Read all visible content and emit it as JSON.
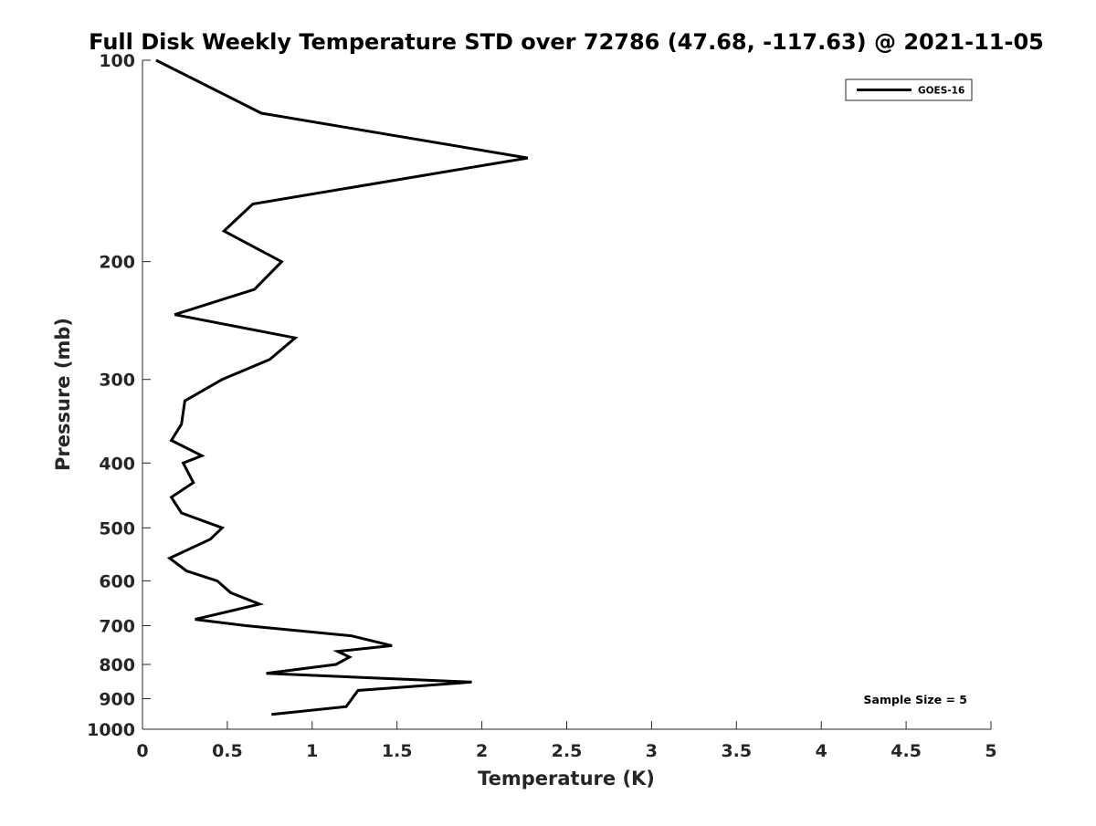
{
  "chart_data": {
    "type": "line",
    "title": "Full Disk Weekly Temperature STD over 72786 (47.68, -117.63) @ 2021-11-05",
    "xlabel": "Temperature (K)",
    "ylabel": "Pressure (mb)",
    "xlim": [
      0,
      5
    ],
    "ylim": [
      100,
      1000
    ],
    "y_scale": "log",
    "y_reversed": true,
    "x_ticks": [
      "0",
      "0.5",
      "1",
      "1.5",
      "2",
      "2.5",
      "3",
      "3.5",
      "4",
      "4.5",
      "5"
    ],
    "y_ticks": [
      "100",
      "200",
      "300",
      "400",
      "500",
      "600",
      "700",
      "800",
      "900",
      "1000"
    ],
    "grid": false,
    "legend_position": "top-right",
    "series": [
      {
        "name": "GOES-16",
        "color": "#000000",
        "points": [
          {
            "x": 0.08,
            "y": 100
          },
          {
            "x": 0.7,
            "y": 120
          },
          {
            "x": 2.27,
            "y": 140
          },
          {
            "x": 0.65,
            "y": 164
          },
          {
            "x": 0.48,
            "y": 180
          },
          {
            "x": 0.82,
            "y": 200
          },
          {
            "x": 0.66,
            "y": 220
          },
          {
            "x": 0.19,
            "y": 240
          },
          {
            "x": 0.9,
            "y": 260
          },
          {
            "x": 0.75,
            "y": 280
          },
          {
            "x": 0.47,
            "y": 300
          },
          {
            "x": 0.25,
            "y": 323
          },
          {
            "x": 0.23,
            "y": 350
          },
          {
            "x": 0.17,
            "y": 370
          },
          {
            "x": 0.35,
            "y": 390
          },
          {
            "x": 0.24,
            "y": 400
          },
          {
            "x": 0.3,
            "y": 428
          },
          {
            "x": 0.17,
            "y": 450
          },
          {
            "x": 0.23,
            "y": 475
          },
          {
            "x": 0.47,
            "y": 500
          },
          {
            "x": 0.4,
            "y": 520
          },
          {
            "x": 0.16,
            "y": 555
          },
          {
            "x": 0.26,
            "y": 580
          },
          {
            "x": 0.44,
            "y": 600
          },
          {
            "x": 0.52,
            "y": 625
          },
          {
            "x": 0.69,
            "y": 650
          },
          {
            "x": 0.31,
            "y": 685
          },
          {
            "x": 0.61,
            "y": 700
          },
          {
            "x": 1.23,
            "y": 725
          },
          {
            "x": 1.47,
            "y": 750
          },
          {
            "x": 1.15,
            "y": 765
          },
          {
            "x": 1.22,
            "y": 780
          },
          {
            "x": 1.14,
            "y": 800
          },
          {
            "x": 0.73,
            "y": 825
          },
          {
            "x": 1.94,
            "y": 850
          },
          {
            "x": 1.27,
            "y": 875
          },
          {
            "x": 1.2,
            "y": 925
          },
          {
            "x": 0.76,
            "y": 950
          }
        ]
      }
    ],
    "annotation": "Sample Size = 5"
  }
}
